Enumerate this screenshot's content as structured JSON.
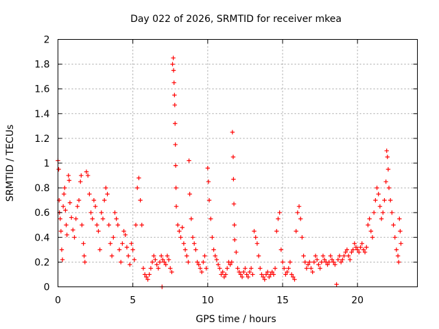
{
  "chart_data": {
    "type": "scatter",
    "title": "Day 022 of 2026, SRMTID for receiver mkea",
    "xlabel": "GPS time / hours",
    "ylabel": "SRMTID / TECUs",
    "xlim": [
      0,
      24
    ],
    "ylim": [
      0,
      2
    ],
    "x_ticks": [
      0,
      5,
      10,
      15,
      20
    ],
    "y_ticks": [
      0,
      0.2,
      0.4,
      0.6,
      0.8,
      1,
      1.2,
      1.4,
      1.6,
      1.8,
      2
    ],
    "x_tick_labels": [
      "0",
      "5",
      "10",
      "15",
      "20"
    ],
    "y_tick_labels": [
      "0",
      "0.2",
      "0.4",
      "0.6",
      "0.8",
      "1",
      "1.2",
      "1.4",
      "1.6",
      "1.8",
      "2"
    ],
    "grid": true,
    "marker": "+",
    "color": "#ff0000",
    "series": [
      {
        "name": "SRMTID",
        "points": [
          [
            0.0,
            1.02
          ],
          [
            0.05,
            0.95
          ],
          [
            0.08,
            0.7
          ],
          [
            0.1,
            0.6
          ],
          [
            0.15,
            0.55
          ],
          [
            0.2,
            0.45
          ],
          [
            0.25,
            0.3
          ],
          [
            0.3,
            0.22
          ],
          [
            0.35,
            0.65
          ],
          [
            0.4,
            0.75
          ],
          [
            0.45,
            0.8
          ],
          [
            0.5,
            0.62
          ],
          [
            0.55,
            0.5
          ],
          [
            0.6,
            0.42
          ],
          [
            0.7,
            0.9
          ],
          [
            0.75,
            0.86
          ],
          [
            0.8,
            0.68
          ],
          [
            0.9,
            0.56
          ],
          [
            1.0,
            0.46
          ],
          [
            1.1,
            0.4
          ],
          [
            1.2,
            0.55
          ],
          [
            1.3,
            0.65
          ],
          [
            1.4,
            0.7
          ],
          [
            1.5,
            0.85
          ],
          [
            1.55,
            0.9
          ],
          [
            1.6,
            0.5
          ],
          [
            1.7,
            0.35
          ],
          [
            1.75,
            0.25
          ],
          [
            1.8,
            0.2
          ],
          [
            1.9,
            0.93
          ],
          [
            2.0,
            0.9
          ],
          [
            2.1,
            0.75
          ],
          [
            2.2,
            0.6
          ],
          [
            2.3,
            0.55
          ],
          [
            2.4,
            0.7
          ],
          [
            2.5,
            0.65
          ],
          [
            2.6,
            0.5
          ],
          [
            2.7,
            0.45
          ],
          [
            2.8,
            0.3
          ],
          [
            2.9,
            0.6
          ],
          [
            3.0,
            0.55
          ],
          [
            3.1,
            0.7
          ],
          [
            3.2,
            0.8
          ],
          [
            3.3,
            0.75
          ],
          [
            3.4,
            0.5
          ],
          [
            3.5,
            0.35
          ],
          [
            3.6,
            0.25
          ],
          [
            3.7,
            0.4
          ],
          [
            3.8,
            0.6
          ],
          [
            3.9,
            0.55
          ],
          [
            4.0,
            0.5
          ],
          [
            4.1,
            0.3
          ],
          [
            4.2,
            0.2
          ],
          [
            4.3,
            0.35
          ],
          [
            4.4,
            0.45
          ],
          [
            4.5,
            0.42
          ],
          [
            4.6,
            0.32
          ],
          [
            4.7,
            0.25
          ],
          [
            4.8,
            0.18
          ],
          [
            4.9,
            0.35
          ],
          [
            5.0,
            0.3
          ],
          [
            5.1,
            0.22
          ],
          [
            5.2,
            0.5
          ],
          [
            5.3,
            0.8
          ],
          [
            5.4,
            0.88
          ],
          [
            5.5,
            0.7
          ],
          [
            5.6,
            0.5
          ],
          [
            5.7,
            0.15
          ],
          [
            5.8,
            0.1
          ],
          [
            5.9,
            0.08
          ],
          [
            6.0,
            0.06
          ],
          [
            6.1,
            0.1
          ],
          [
            6.2,
            0.15
          ],
          [
            6.3,
            0.2
          ],
          [
            6.4,
            0.25
          ],
          [
            6.5,
            0.22
          ],
          [
            6.6,
            0.18
          ],
          [
            6.7,
            0.15
          ],
          [
            6.8,
            0.2
          ],
          [
            6.9,
            0.25
          ],
          [
            6.95,
            0.0
          ],
          [
            7.0,
            0.22
          ],
          [
            7.1,
            0.2
          ],
          [
            7.2,
            0.18
          ],
          [
            7.3,
            0.25
          ],
          [
            7.4,
            0.22
          ],
          [
            7.5,
            0.15
          ],
          [
            7.6,
            0.12
          ],
          [
            7.65,
            1.8
          ],
          [
            7.7,
            1.85
          ],
          [
            7.72,
            1.75
          ],
          [
            7.75,
            1.65
          ],
          [
            7.78,
            1.55
          ],
          [
            7.8,
            1.47
          ],
          [
            7.82,
            1.32
          ],
          [
            7.84,
            1.15
          ],
          [
            7.86,
            0.98
          ],
          [
            7.88,
            0.8
          ],
          [
            7.9,
            0.65
          ],
          [
            8.0,
            0.5
          ],
          [
            8.1,
            0.45
          ],
          [
            8.2,
            0.4
          ],
          [
            8.3,
            0.48
          ],
          [
            8.4,
            0.35
          ],
          [
            8.5,
            0.3
          ],
          [
            8.6,
            0.25
          ],
          [
            8.7,
            0.2
          ],
          [
            8.75,
            1.02
          ],
          [
            8.8,
            0.75
          ],
          [
            8.9,
            0.55
          ],
          [
            9.0,
            0.4
          ],
          [
            9.1,
            0.35
          ],
          [
            9.2,
            0.3
          ],
          [
            9.3,
            0.2
          ],
          [
            9.4,
            0.18
          ],
          [
            9.5,
            0.15
          ],
          [
            9.6,
            0.12
          ],
          [
            9.7,
            0.2
          ],
          [
            9.8,
            0.25
          ],
          [
            9.9,
            0.15
          ],
          [
            10.0,
            0.96
          ],
          [
            10.05,
            0.85
          ],
          [
            10.1,
            0.7
          ],
          [
            10.2,
            0.55
          ],
          [
            10.3,
            0.4
          ],
          [
            10.4,
            0.3
          ],
          [
            10.5,
            0.25
          ],
          [
            10.6,
            0.22
          ],
          [
            10.7,
            0.18
          ],
          [
            10.8,
            0.15
          ],
          [
            10.9,
            0.1
          ],
          [
            11.0,
            0.12
          ],
          [
            11.1,
            0.08
          ],
          [
            11.2,
            0.1
          ],
          [
            11.3,
            0.15
          ],
          [
            11.4,
            0.2
          ],
          [
            11.5,
            0.18
          ],
          [
            11.6,
            0.2
          ],
          [
            11.65,
            1.25
          ],
          [
            11.7,
            1.05
          ],
          [
            11.72,
            0.87
          ],
          [
            11.75,
            0.67
          ],
          [
            11.78,
            0.5
          ],
          [
            11.8,
            0.38
          ],
          [
            11.9,
            0.28
          ],
          [
            12.0,
            0.15
          ],
          [
            12.1,
            0.12
          ],
          [
            12.2,
            0.1
          ],
          [
            12.3,
            0.08
          ],
          [
            12.4,
            0.12
          ],
          [
            12.5,
            0.15
          ],
          [
            12.6,
            0.1
          ],
          [
            12.7,
            0.08
          ],
          [
            12.8,
            0.12
          ],
          [
            12.9,
            0.15
          ],
          [
            13.0,
            0.1
          ],
          [
            13.1,
            0.45
          ],
          [
            13.2,
            0.4
          ],
          [
            13.3,
            0.35
          ],
          [
            13.4,
            0.25
          ],
          [
            13.5,
            0.15
          ],
          [
            13.6,
            0.1
          ],
          [
            13.7,
            0.08
          ],
          [
            13.8,
            0.06
          ],
          [
            13.9,
            0.1
          ],
          [
            14.0,
            0.12
          ],
          [
            14.1,
            0.08
          ],
          [
            14.2,
            0.1
          ],
          [
            14.3,
            0.12
          ],
          [
            14.4,
            0.1
          ],
          [
            14.5,
            0.15
          ],
          [
            14.6,
            0.45
          ],
          [
            14.7,
            0.55
          ],
          [
            14.8,
            0.6
          ],
          [
            14.9,
            0.3
          ],
          [
            15.0,
            0.2
          ],
          [
            15.1,
            0.15
          ],
          [
            15.2,
            0.1
          ],
          [
            15.3,
            0.12
          ],
          [
            15.4,
            0.15
          ],
          [
            15.5,
            0.2
          ],
          [
            15.6,
            0.1
          ],
          [
            15.7,
            0.08
          ],
          [
            15.8,
            0.06
          ],
          [
            15.9,
            0.45
          ],
          [
            16.0,
            0.6
          ],
          [
            16.1,
            0.65
          ],
          [
            16.2,
            0.55
          ],
          [
            16.3,
            0.4
          ],
          [
            16.4,
            0.25
          ],
          [
            16.5,
            0.2
          ],
          [
            16.6,
            0.15
          ],
          [
            16.7,
            0.18
          ],
          [
            16.8,
            0.2
          ],
          [
            16.9,
            0.15
          ],
          [
            17.0,
            0.12
          ],
          [
            17.1,
            0.2
          ],
          [
            17.2,
            0.25
          ],
          [
            17.3,
            0.22
          ],
          [
            17.4,
            0.18
          ],
          [
            17.5,
            0.15
          ],
          [
            17.6,
            0.2
          ],
          [
            17.7,
            0.25
          ],
          [
            17.8,
            0.22
          ],
          [
            17.9,
            0.2
          ],
          [
            18.0,
            0.18
          ],
          [
            18.1,
            0.2
          ],
          [
            18.2,
            0.25
          ],
          [
            18.3,
            0.22
          ],
          [
            18.4,
            0.2
          ],
          [
            18.5,
            0.18
          ],
          [
            18.6,
            0.02
          ],
          [
            18.7,
            0.22
          ],
          [
            18.8,
            0.25
          ],
          [
            18.9,
            0.2
          ],
          [
            19.0,
            0.22
          ],
          [
            19.1,
            0.25
          ],
          [
            19.2,
            0.28
          ],
          [
            19.3,
            0.3
          ],
          [
            19.4,
            0.25
          ],
          [
            19.5,
            0.22
          ],
          [
            19.6,
            0.28
          ],
          [
            19.7,
            0.3
          ],
          [
            19.8,
            0.35
          ],
          [
            19.9,
            0.32
          ],
          [
            20.0,
            0.3
          ],
          [
            20.1,
            0.28
          ],
          [
            20.2,
            0.32
          ],
          [
            20.3,
            0.35
          ],
          [
            20.4,
            0.3
          ],
          [
            20.5,
            0.28
          ],
          [
            20.6,
            0.32
          ],
          [
            20.7,
            0.5
          ],
          [
            20.8,
            0.55
          ],
          [
            20.9,
            0.45
          ],
          [
            21.0,
            0.4
          ],
          [
            21.1,
            0.6
          ],
          [
            21.2,
            0.7
          ],
          [
            21.3,
            0.8
          ],
          [
            21.4,
            0.75
          ],
          [
            21.5,
            0.65
          ],
          [
            21.6,
            0.55
          ],
          [
            21.7,
            0.6
          ],
          [
            21.8,
            0.7
          ],
          [
            21.9,
            0.85
          ],
          [
            21.95,
            1.1
          ],
          [
            22.0,
            1.05
          ],
          [
            22.05,
            0.95
          ],
          [
            22.1,
            0.8
          ],
          [
            22.2,
            0.7
          ],
          [
            22.3,
            0.6
          ],
          [
            22.4,
            0.5
          ],
          [
            22.5,
            0.4
          ],
          [
            22.6,
            0.3
          ],
          [
            22.7,
            0.25
          ],
          [
            22.75,
            0.2
          ],
          [
            22.8,
            0.55
          ],
          [
            22.85,
            0.45
          ],
          [
            22.9,
            0.35
          ]
        ]
      }
    ]
  }
}
